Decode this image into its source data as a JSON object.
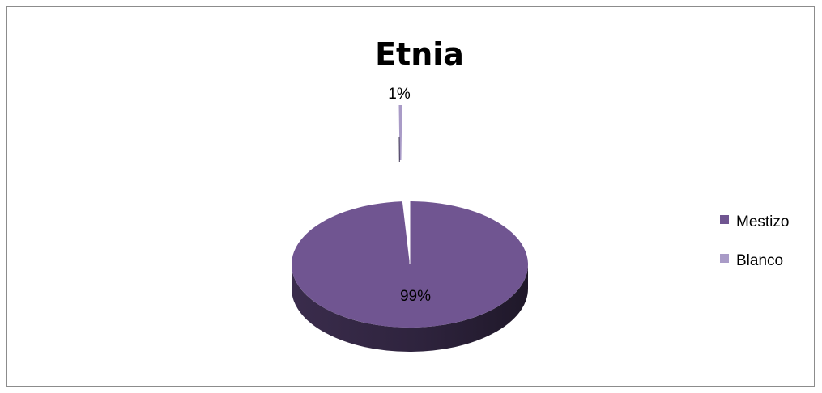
{
  "chart_data": {
    "type": "pie",
    "title": "Etnia",
    "categories": [
      "Mestizo",
      "Blanco"
    ],
    "values": [
      99,
      1
    ],
    "data_labels": [
      "99%",
      "1%"
    ],
    "colors": [
      "#705591",
      "#a99bc7"
    ],
    "legend_placement": "right",
    "exploded_slice": "Blanco",
    "style": "3d"
  }
}
